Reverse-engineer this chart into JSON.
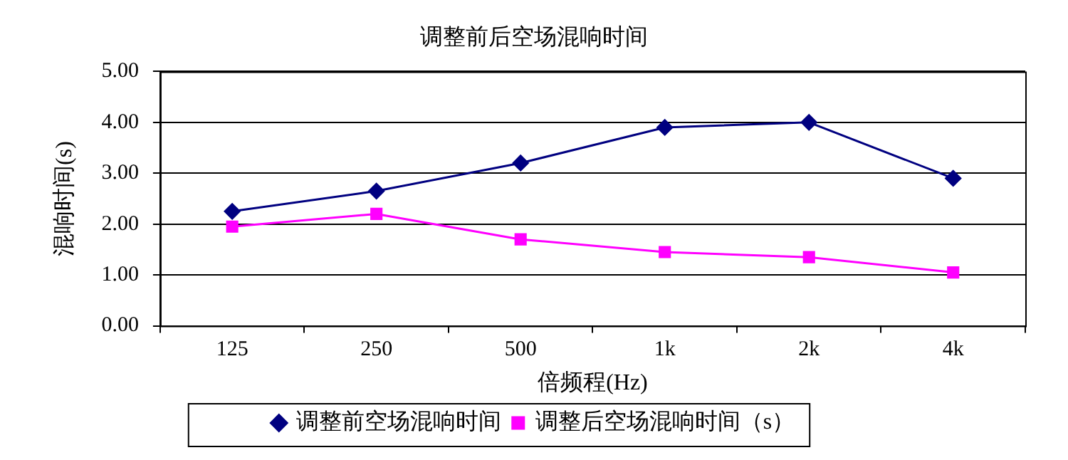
{
  "chart_data": {
    "type": "line",
    "title": "调整前后空场混响时间",
    "xlabel": "倍频程(Hz)",
    "ylabel": "混响时间(s)",
    "categories": [
      "125",
      "250",
      "500",
      "1k",
      "2k",
      "4k"
    ],
    "series": [
      {
        "name": "调整前空场混响时间",
        "color": "#000080",
        "marker": "diamond",
        "values": [
          2.25,
          2.65,
          3.2,
          3.9,
          4.0,
          2.9
        ]
      },
      {
        "name": "调整后空场混响时间（s）",
        "color": "#ff00ff",
        "marker": "square",
        "values": [
          1.95,
          2.2,
          1.7,
          1.45,
          1.35,
          1.05
        ]
      }
    ],
    "ylim": [
      0,
      5
    ],
    "yticks": [
      {
        "value": 0,
        "label": "0.00"
      },
      {
        "value": 1,
        "label": "1.00"
      },
      {
        "value": 2,
        "label": "2.00"
      },
      {
        "value": 3,
        "label": "3.00"
      },
      {
        "value": 4,
        "label": "4.00"
      },
      {
        "value": 5,
        "label": "5.00"
      }
    ],
    "grid": "y",
    "legend": "bottom"
  }
}
